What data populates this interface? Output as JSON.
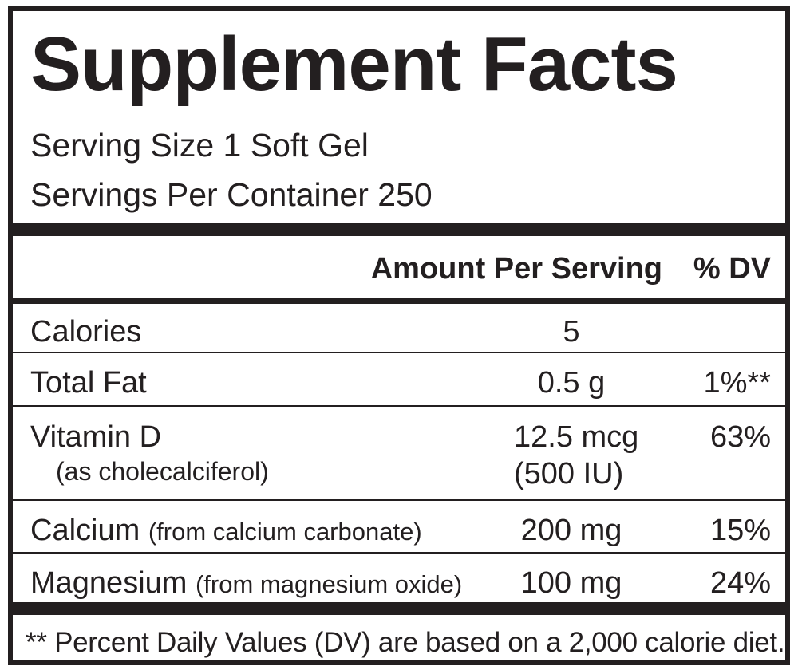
{
  "panel": {
    "title": "Supplement Facts",
    "serving_size": "Serving Size 1 Soft Gel",
    "servings_per_container": "Servings Per Container 250"
  },
  "table": {
    "header_amount": "Amount Per Serving",
    "header_dv": "% DV",
    "rows": [
      {
        "name": "Calories",
        "amount": "5",
        "dv": ""
      },
      {
        "name": "Total Fat",
        "amount": "0.5 g",
        "dv": "1%**"
      },
      {
        "name": "Vitamin D",
        "name_sub": "(as cholecalciferol)",
        "amount": "12.5 mcg",
        "amount_sub": "(500 IU)",
        "dv": "63%"
      },
      {
        "name": "Calcium",
        "name_sub": "(from calcium carbonate)",
        "amount": "200 mg",
        "dv": "15%"
      },
      {
        "name": "Magnesium",
        "name_sub": "(from magnesium oxide)",
        "amount": "100 mg",
        "dv": "24%"
      }
    ]
  },
  "footnote": "** Percent Daily Values (DV) are based on a 2,000 calorie diet.",
  "colors": {
    "ink": "#231f20",
    "background": "#ffffff"
  }
}
